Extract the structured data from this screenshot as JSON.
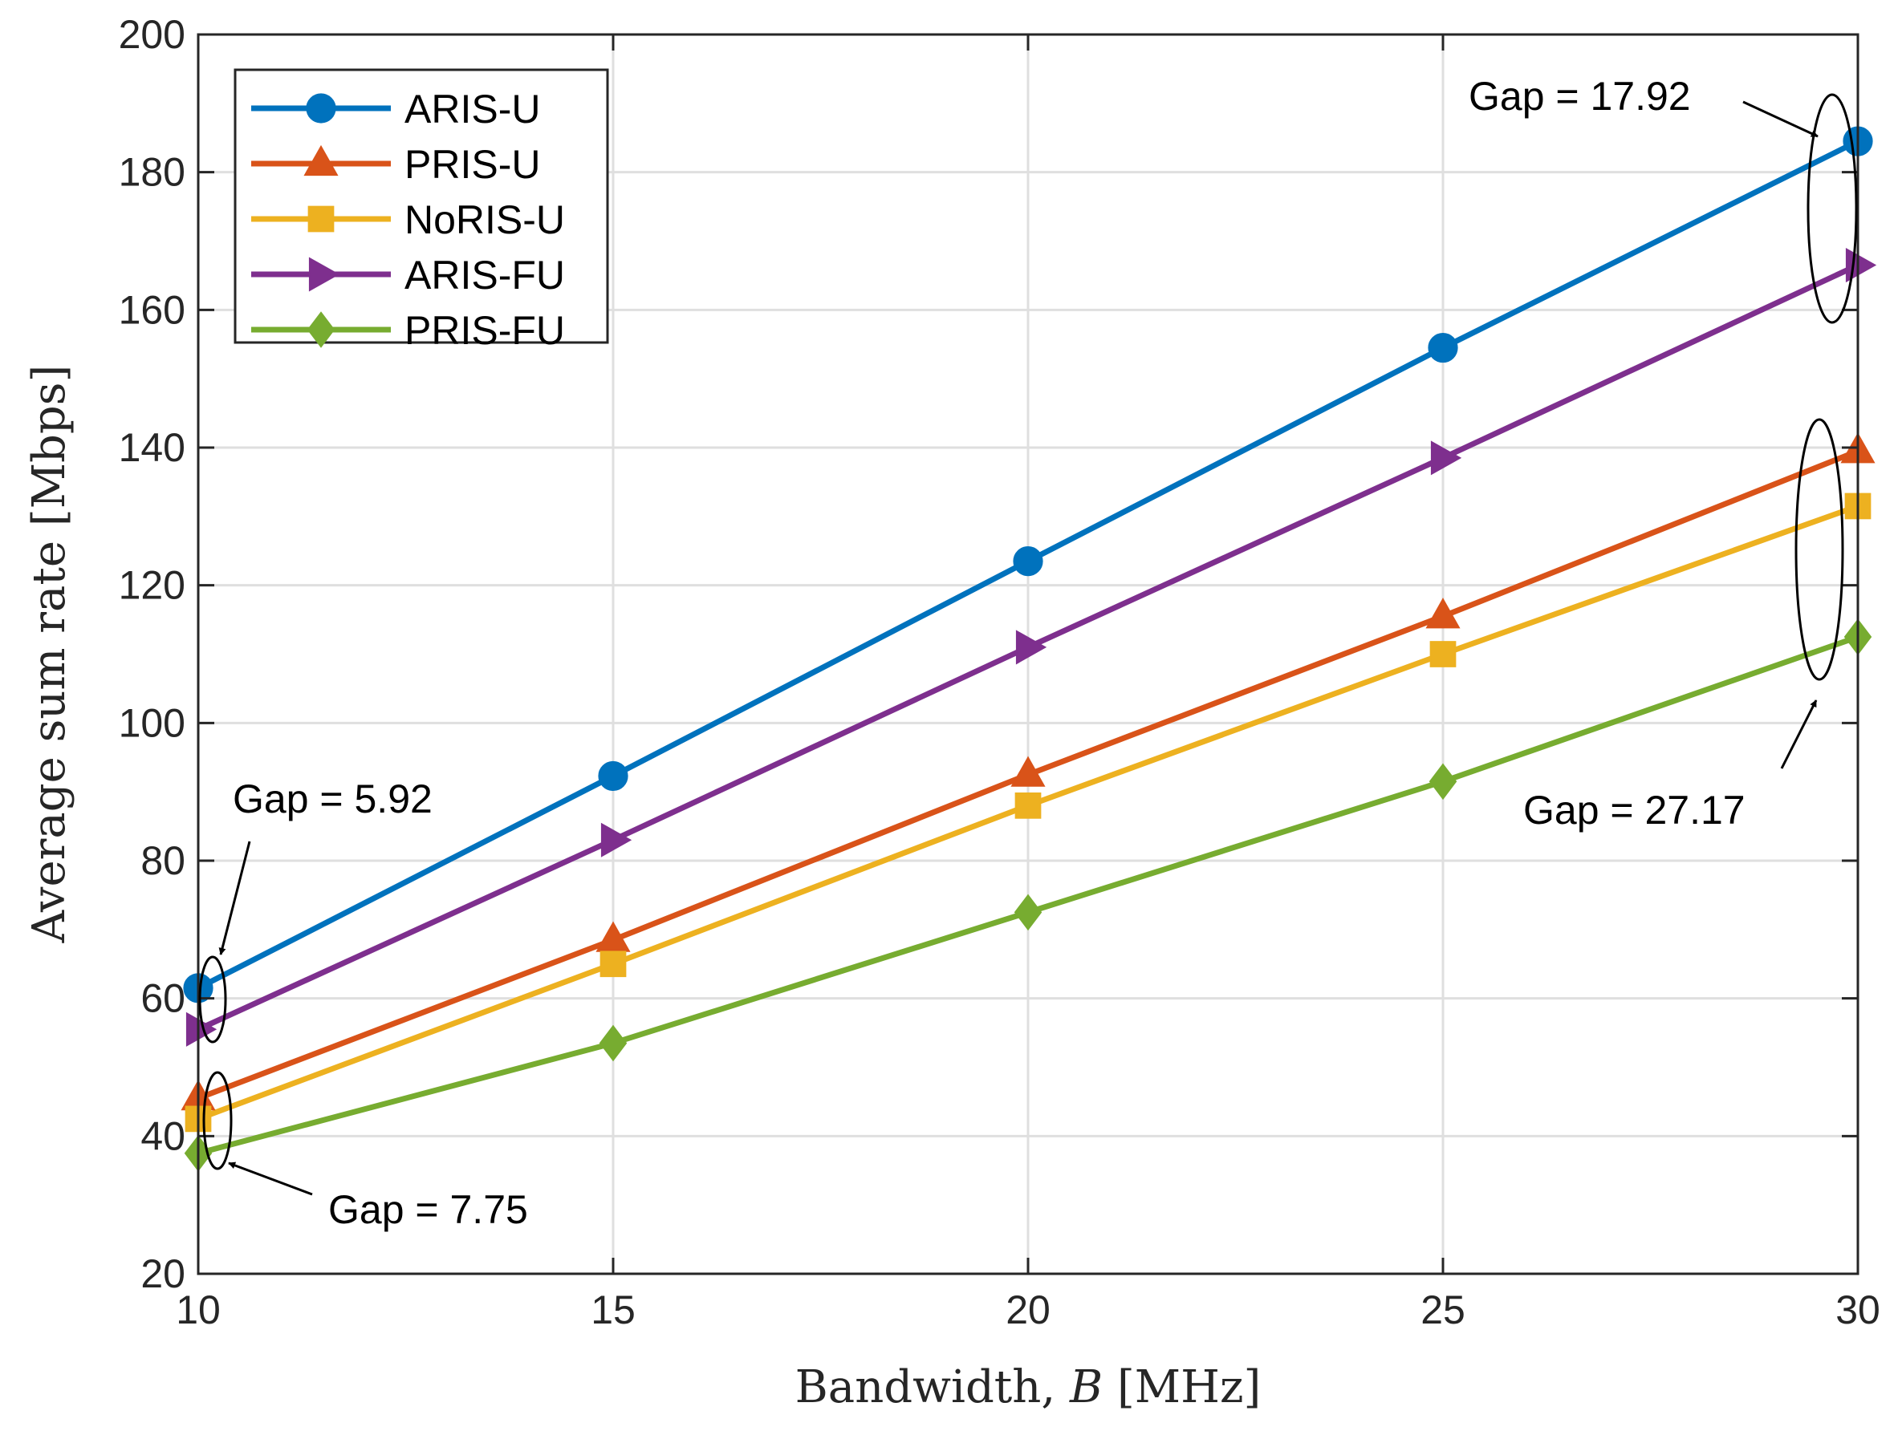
{
  "chart_data": {
    "type": "line",
    "xlabel": "Bandwidth, ",
    "xlabel_var": "B",
    "xlabel_unit": " [MHz]",
    "ylabel": "Average sum rate [Mbps]",
    "xlim": [
      10,
      30
    ],
    "ylim": [
      20,
      200
    ],
    "xticks": [
      "10",
      "15",
      "20",
      "25",
      "30"
    ],
    "yticks": [
      "20",
      "40",
      "60",
      "80",
      "100",
      "120",
      "140",
      "160",
      "180",
      "200"
    ],
    "grid": true,
    "legend_position": "top-left",
    "x": [
      10,
      15,
      20,
      25,
      30
    ],
    "series": [
      {
        "name": "ARIS-U",
        "marker": "circle",
        "color": "#0072BD",
        "values": [
          61.5,
          92.3,
          123.5,
          154.5,
          184.5
        ]
      },
      {
        "name": "PRIS-U",
        "marker": "triangle-up",
        "color": "#D95319",
        "values": [
          45.5,
          68.5,
          92.5,
          115.5,
          139.5
        ]
      },
      {
        "name": "NoRIS-U",
        "marker": "square",
        "color": "#EDB120",
        "values": [
          42.5,
          65.0,
          88.0,
          110.0,
          131.5
        ]
      },
      {
        "name": "ARIS-FU",
        "marker": "triangle-right",
        "color": "#7E2F8E",
        "values": [
          55.5,
          83.0,
          111.0,
          138.5,
          166.5
        ]
      },
      {
        "name": "PRIS-FU",
        "marker": "diamond",
        "color": "#77AC30",
        "values": [
          37.5,
          53.5,
          72.5,
          91.5,
          112.5
        ]
      }
    ],
    "annotations": [
      {
        "text": "Gap = 17.92"
      },
      {
        "text": "Gap = 27.17"
      },
      {
        "text": "Gap = 5.92"
      },
      {
        "text": "Gap = 7.75"
      }
    ]
  }
}
